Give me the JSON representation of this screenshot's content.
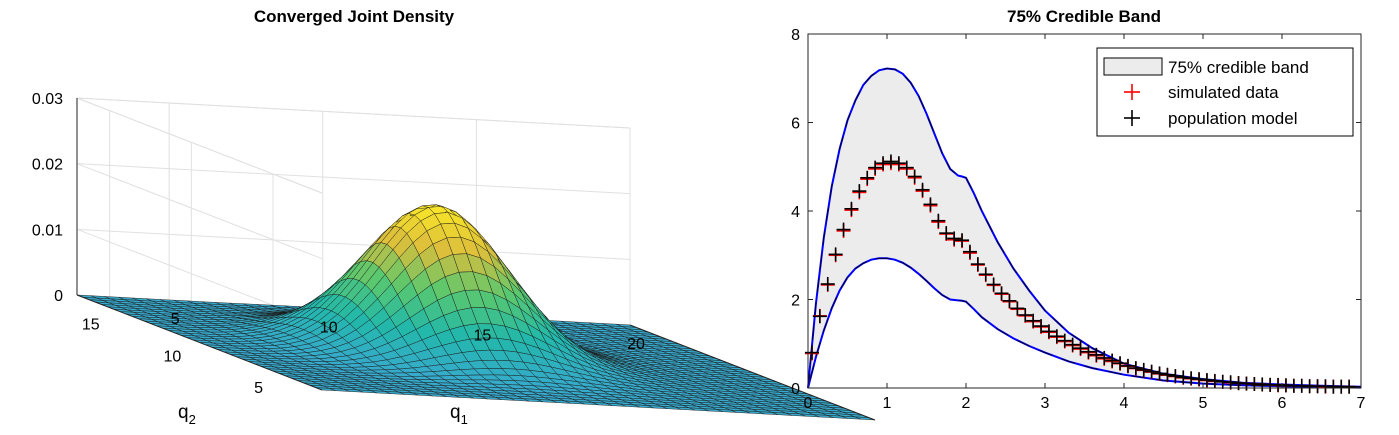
{
  "colors": {
    "band_fill": "#ececec",
    "band_edge": "#0000ff",
    "simulated": "#ff0000",
    "population": "#000000",
    "surface_low": "#2a9fd6",
    "surface_mid": "#37c39a",
    "surface_high": "#f9e51e"
  },
  "chart_data": [
    {
      "type": "surface",
      "title": "Converged Joint Density",
      "xlabel": "q",
      "xlabel_sub": "1",
      "ylabel": "q",
      "ylabel_sub": "2",
      "zlabel": "",
      "xlim": [
        2,
        20
      ],
      "ylim": [
        2,
        17
      ],
      "zlim": [
        0,
        0.03
      ],
      "x_ticks": [
        5,
        10,
        15,
        20
      ],
      "y_ticks": [
        5,
        10,
        15
      ],
      "z_ticks": [
        "0",
        "0.01",
        "0.02",
        "0.03"
      ],
      "surface": {
        "function": "bivariate normal",
        "peak_value": 0.0225,
        "center_q1": 10,
        "center_q2": 10,
        "std_q1": 2.1,
        "std_q2": 2.1
      },
      "colormap": "parula",
      "grid": true
    },
    {
      "type": "line",
      "title": "75% Credible Band",
      "xlabel": "",
      "ylabel": "",
      "xlim": [
        0,
        7
      ],
      "ylim": [
        0,
        8
      ],
      "x_ticks": [
        "0",
        "1",
        "2",
        "3",
        "4",
        "5",
        "6",
        "7"
      ],
      "y_ticks": [
        "0",
        "2",
        "4",
        "6",
        "8"
      ],
      "legend": {
        "position": "top-right",
        "entries": [
          "75% credible band",
          "simulated data",
          "population model"
        ]
      },
      "band": {
        "x": [
          0,
          0.1,
          0.2,
          0.3,
          0.4,
          0.5,
          0.6,
          0.7,
          0.8,
          0.9,
          1.0,
          1.1,
          1.2,
          1.3,
          1.4,
          1.5,
          1.6,
          1.7,
          1.8,
          1.9,
          1.95,
          2.0,
          2.1,
          2.2,
          2.4,
          2.6,
          2.8,
          3.0,
          3.3,
          3.6,
          4.0,
          4.5,
          5.0,
          5.5,
          6.0,
          6.5,
          7.0
        ],
        "upper": [
          0,
          1.9,
          3.4,
          4.55,
          5.4,
          6.05,
          6.5,
          6.85,
          7.05,
          7.18,
          7.22,
          7.2,
          7.1,
          6.9,
          6.6,
          6.2,
          5.75,
          5.3,
          4.95,
          4.8,
          4.78,
          4.75,
          4.4,
          4.0,
          3.3,
          2.7,
          2.2,
          1.75,
          1.25,
          0.9,
          0.55,
          0.32,
          0.2,
          0.12,
          0.08,
          0.05,
          0.03
        ],
        "lower": [
          0,
          0.7,
          1.3,
          1.8,
          2.2,
          2.5,
          2.7,
          2.82,
          2.9,
          2.93,
          2.93,
          2.9,
          2.83,
          2.72,
          2.58,
          2.42,
          2.25,
          2.1,
          2.0,
          1.98,
          1.97,
          1.95,
          1.78,
          1.6,
          1.33,
          1.12,
          0.95,
          0.8,
          0.6,
          0.45,
          0.3,
          0.17,
          0.1,
          0.06,
          0.04,
          0.02,
          0.01
        ]
      },
      "series": [
        {
          "name": "simulated data",
          "marker": "+",
          "x": [
            0.05,
            0.15,
            0.25,
            0.35,
            0.45,
            0.55,
            0.65,
            0.75,
            0.85,
            0.95,
            1.05,
            1.15,
            1.25,
            1.35,
            1.45,
            1.55,
            1.65,
            1.75,
            1.85,
            1.95,
            2.05,
            2.15,
            2.25,
            2.35,
            2.45,
            2.55,
            2.65,
            2.75,
            2.85,
            2.95,
            3.05,
            3.15,
            3.25,
            3.35,
            3.45,
            3.55,
            3.65,
            3.75,
            3.85,
            3.95,
            4.05,
            4.15,
            4.25,
            4.35,
            4.45,
            4.55,
            4.65,
            4.75,
            4.85,
            4.95,
            5.05,
            5.15,
            5.25,
            5.35,
            5.45,
            5.55,
            5.65,
            5.75,
            5.85,
            5.95,
            6.05,
            6.15,
            6.25,
            6.35,
            6.45,
            6.55,
            6.65,
            6.75,
            6.85
          ],
          "y": [
            0.78,
            1.63,
            2.33,
            3.0,
            3.55,
            4.02,
            4.42,
            4.72,
            4.95,
            5.05,
            5.08,
            5.05,
            4.95,
            4.75,
            4.45,
            4.12,
            3.75,
            3.48,
            3.35,
            3.32,
            3.05,
            2.78,
            2.55,
            2.32,
            2.12,
            1.95,
            1.78,
            1.63,
            1.5,
            1.38,
            1.26,
            1.15,
            1.05,
            0.96,
            0.88,
            0.8,
            0.73,
            0.66,
            0.6,
            0.55,
            0.49,
            0.44,
            0.4,
            0.36,
            0.32,
            0.29,
            0.26,
            0.23,
            0.21,
            0.19,
            0.17,
            0.15,
            0.14,
            0.12,
            0.11,
            0.1,
            0.09,
            0.08,
            0.07,
            0.06,
            0.06,
            0.05,
            0.05,
            0.04,
            0.04,
            0.03,
            0.03,
            0.03,
            0.03
          ]
        },
        {
          "name": "population model",
          "marker": "+",
          "x": [
            0.05,
            0.15,
            0.25,
            0.35,
            0.45,
            0.55,
            0.65,
            0.75,
            0.85,
            0.95,
            1.05,
            1.15,
            1.25,
            1.35,
            1.45,
            1.55,
            1.65,
            1.75,
            1.85,
            1.95,
            2.05,
            2.15,
            2.25,
            2.35,
            2.45,
            2.55,
            2.65,
            2.75,
            2.85,
            2.95,
            3.05,
            3.15,
            3.25,
            3.35,
            3.45,
            3.55,
            3.65,
            3.75,
            3.85,
            3.95,
            4.05,
            4.15,
            4.25,
            4.35,
            4.45,
            4.55,
            4.65,
            4.75,
            4.85,
            4.95,
            5.05,
            5.15,
            5.25,
            5.35,
            5.45,
            5.55,
            5.65,
            5.75,
            5.85,
            5.95,
            6.05,
            6.15,
            6.25,
            6.35,
            6.45,
            6.55,
            6.65,
            6.75,
            6.85
          ],
          "y": [
            0.8,
            1.62,
            2.35,
            3.02,
            3.58,
            4.05,
            4.45,
            4.75,
            4.98,
            5.08,
            5.12,
            5.08,
            4.98,
            4.78,
            4.48,
            4.15,
            3.78,
            3.5,
            3.38,
            3.34,
            3.08,
            2.8,
            2.57,
            2.34,
            2.14,
            1.97,
            1.8,
            1.65,
            1.52,
            1.4,
            1.28,
            1.17,
            1.07,
            0.98,
            0.9,
            0.82,
            0.75,
            0.68,
            0.62,
            0.56,
            0.5,
            0.45,
            0.41,
            0.37,
            0.33,
            0.3,
            0.27,
            0.24,
            0.22,
            0.2,
            0.18,
            0.16,
            0.14,
            0.13,
            0.11,
            0.1,
            0.09,
            0.08,
            0.07,
            0.07,
            0.06,
            0.05,
            0.05,
            0.04,
            0.04,
            0.04,
            0.03,
            0.03,
            0.03
          ]
        }
      ],
      "grid": false
    }
  ]
}
